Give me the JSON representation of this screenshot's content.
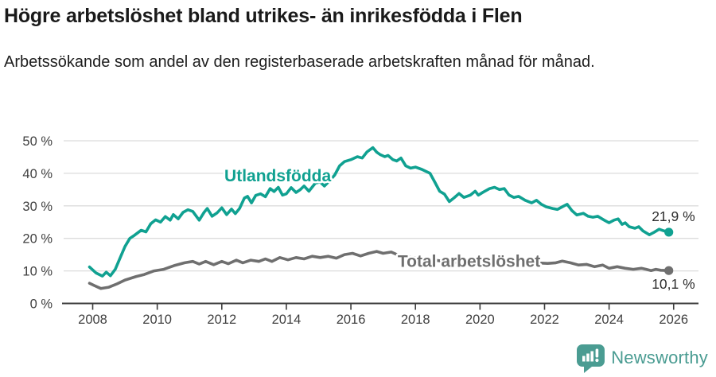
{
  "header": {
    "title": "Högre arbetslöshet bland utrikes- än inrikesfödda i Flen",
    "subtitle": "Arbetssökande som andel av den registerbaserade arbetskraften månad för månad."
  },
  "chart_data": {
    "type": "line",
    "title": "Högre arbetslöshet bland utrikes- än inrikesfödda i Flen",
    "subtitle": "Arbetssökande som andel av den registerbaserade arbetskraften månad för månad.",
    "grid": true,
    "x_axis": {
      "range": [
        2007.1,
        2026.77
      ],
      "ticks": [
        {
          "value": 2008,
          "label": "2008"
        },
        {
          "value": 2010,
          "label": "2010"
        },
        {
          "value": 2012,
          "label": "2012"
        },
        {
          "value": 2014,
          "label": "2014"
        },
        {
          "value": 2016,
          "label": "2016"
        },
        {
          "value": 2018,
          "label": "2018"
        },
        {
          "value": 2020,
          "label": "2020"
        },
        {
          "value": 2022,
          "label": "2022"
        },
        {
          "value": 2024,
          "label": "2024"
        },
        {
          "value": 2026,
          "label": "2026"
        }
      ]
    },
    "y_axis": {
      "range": [
        0,
        50
      ],
      "ticks": [
        {
          "value": 0,
          "label": "0 %"
        },
        {
          "value": 10,
          "label": "10 %"
        },
        {
          "value": 20,
          "label": "20 %"
        },
        {
          "value": 30,
          "label": "30 %"
        },
        {
          "value": 40,
          "label": "40 %"
        },
        {
          "value": 50,
          "label": "50 %"
        }
      ]
    },
    "colors": {
      "accent_teal": "#10a191",
      "line_gray": "#6f6f6f",
      "grid": "#dcdcdc",
      "axis": "#3c3c3c",
      "tick_text": "#3f3f3f",
      "value_text": "#2e2e2e"
    },
    "series": [
      {
        "name": "Total arbetslöshet",
        "slug": "total-arbetsloshet",
        "color": "#6f6f6f",
        "end_label": "10,1 %",
        "end_label_position": "below",
        "label_anchor": {
          "x": 2017.45,
          "y": 11.2
        },
        "points": [
          [
            2007.9,
            6.2
          ],
          [
            2008.05,
            5.5
          ],
          [
            2008.25,
            4.6
          ],
          [
            2008.5,
            5.0
          ],
          [
            2008.75,
            6.0
          ],
          [
            2009.0,
            7.2
          ],
          [
            2009.35,
            8.3
          ],
          [
            2009.6,
            8.9
          ],
          [
            2009.9,
            10.0
          ],
          [
            2010.2,
            10.5
          ],
          [
            2010.55,
            11.7
          ],
          [
            2010.85,
            12.5
          ],
          [
            2011.1,
            12.9
          ],
          [
            2011.3,
            12.1
          ],
          [
            2011.5,
            12.9
          ],
          [
            2011.75,
            11.9
          ],
          [
            2012.0,
            12.9
          ],
          [
            2012.2,
            12.2
          ],
          [
            2012.45,
            13.3
          ],
          [
            2012.65,
            12.5
          ],
          [
            2012.9,
            13.3
          ],
          [
            2013.15,
            12.9
          ],
          [
            2013.35,
            13.7
          ],
          [
            2013.55,
            12.9
          ],
          [
            2013.8,
            14.1
          ],
          [
            2014.05,
            13.4
          ],
          [
            2014.3,
            14.1
          ],
          [
            2014.55,
            13.7
          ],
          [
            2014.8,
            14.5
          ],
          [
            2015.05,
            14.1
          ],
          [
            2015.3,
            14.5
          ],
          [
            2015.55,
            13.9
          ],
          [
            2015.8,
            15.0
          ],
          [
            2016.05,
            15.4
          ],
          [
            2016.3,
            14.6
          ],
          [
            2016.55,
            15.4
          ],
          [
            2016.8,
            16.0
          ],
          [
            2017.0,
            15.4
          ],
          [
            2017.25,
            15.8
          ],
          [
            2017.5,
            14.7
          ],
          [
            2017.75,
            14.3
          ],
          [
            2018.0,
            14.0
          ],
          [
            2018.5,
            13.4
          ],
          [
            2019.0,
            12.8
          ],
          [
            2019.5,
            12.4
          ],
          [
            2019.8,
            12.2
          ],
          [
            2020.3,
            13.0
          ],
          [
            2020.55,
            13.3
          ],
          [
            2020.8,
            13.0
          ],
          [
            2021.0,
            12.7
          ],
          [
            2021.3,
            12.4
          ],
          [
            2021.6,
            12.2
          ],
          [
            2021.9,
            12.4
          ],
          [
            2022.1,
            12.3
          ],
          [
            2022.35,
            12.5
          ],
          [
            2022.55,
            13.0
          ],
          [
            2022.8,
            12.5
          ],
          [
            2023.05,
            11.8
          ],
          [
            2023.3,
            12.0
          ],
          [
            2023.55,
            11.3
          ],
          [
            2023.8,
            11.8
          ],
          [
            2024.0,
            10.8
          ],
          [
            2024.25,
            11.3
          ],
          [
            2024.5,
            10.8
          ],
          [
            2024.75,
            10.5
          ],
          [
            2025.0,
            10.8
          ],
          [
            2025.15,
            10.5
          ],
          [
            2025.3,
            10.1
          ],
          [
            2025.45,
            10.5
          ],
          [
            2025.6,
            10.2
          ],
          [
            2025.85,
            10.1
          ]
        ]
      },
      {
        "name": "Utlandsfödda",
        "slug": "utlandsfodda",
        "color": "#10a191",
        "end_label": "21,9 %",
        "end_label_position": "above",
        "label_anchor": {
          "x": 2012.08,
          "y": 37.5
        },
        "points": [
          [
            2007.9,
            11.2
          ],
          [
            2008.1,
            9.4
          ],
          [
            2008.3,
            8.4
          ],
          [
            2008.42,
            9.6
          ],
          [
            2008.55,
            8.5
          ],
          [
            2008.7,
            10.5
          ],
          [
            2008.85,
            14.0
          ],
          [
            2009.0,
            17.5
          ],
          [
            2009.15,
            20.0
          ],
          [
            2009.3,
            21.0
          ],
          [
            2009.5,
            22.5
          ],
          [
            2009.65,
            22.0
          ],
          [
            2009.8,
            24.5
          ],
          [
            2009.95,
            25.7
          ],
          [
            2010.1,
            25.0
          ],
          [
            2010.25,
            26.7
          ],
          [
            2010.4,
            25.6
          ],
          [
            2010.5,
            27.3
          ],
          [
            2010.65,
            26.0
          ],
          [
            2010.8,
            28.0
          ],
          [
            2010.95,
            28.8
          ],
          [
            2011.1,
            28.3
          ],
          [
            2011.3,
            25.6
          ],
          [
            2011.45,
            28.0
          ],
          [
            2011.55,
            29.2
          ],
          [
            2011.7,
            26.8
          ],
          [
            2011.85,
            27.8
          ],
          [
            2012.0,
            29.4
          ],
          [
            2012.15,
            27.3
          ],
          [
            2012.3,
            29.0
          ],
          [
            2012.42,
            27.6
          ],
          [
            2012.55,
            29.2
          ],
          [
            2012.7,
            32.4
          ],
          [
            2012.8,
            32.9
          ],
          [
            2012.92,
            30.9
          ],
          [
            2013.05,
            33.2
          ],
          [
            2013.2,
            33.7
          ],
          [
            2013.35,
            32.8
          ],
          [
            2013.5,
            35.3
          ],
          [
            2013.62,
            34.4
          ],
          [
            2013.75,
            35.7
          ],
          [
            2013.88,
            33.3
          ],
          [
            2014.0,
            33.7
          ],
          [
            2014.15,
            35.6
          ],
          [
            2014.3,
            34.1
          ],
          [
            2014.42,
            34.9
          ],
          [
            2014.55,
            36.1
          ],
          [
            2014.7,
            34.5
          ],
          [
            2014.9,
            37.0
          ],
          [
            2015.05,
            37.3
          ],
          [
            2015.18,
            36.1
          ],
          [
            2015.35,
            37.8
          ],
          [
            2015.5,
            39.5
          ],
          [
            2015.65,
            42.3
          ],
          [
            2015.8,
            43.6
          ],
          [
            2016.0,
            44.2
          ],
          [
            2016.2,
            45.1
          ],
          [
            2016.35,
            44.7
          ],
          [
            2016.5,
            46.6
          ],
          [
            2016.68,
            47.9
          ],
          [
            2016.8,
            46.5
          ],
          [
            2016.9,
            45.8
          ],
          [
            2017.05,
            45.1
          ],
          [
            2017.15,
            45.5
          ],
          [
            2017.3,
            44.2
          ],
          [
            2017.42,
            43.8
          ],
          [
            2017.55,
            44.7
          ],
          [
            2017.7,
            42.3
          ],
          [
            2017.85,
            41.6
          ],
          [
            2018.0,
            41.9
          ],
          [
            2018.2,
            41.2
          ],
          [
            2018.45,
            40.0
          ],
          [
            2018.6,
            37.3
          ],
          [
            2018.75,
            34.5
          ],
          [
            2018.9,
            33.6
          ],
          [
            2019.05,
            31.3
          ],
          [
            2019.2,
            32.5
          ],
          [
            2019.35,
            33.8
          ],
          [
            2019.5,
            32.6
          ],
          [
            2019.7,
            33.3
          ],
          [
            2019.85,
            34.5
          ],
          [
            2019.95,
            33.3
          ],
          [
            2020.1,
            34.2
          ],
          [
            2020.3,
            35.3
          ],
          [
            2020.45,
            35.7
          ],
          [
            2020.6,
            35.0
          ],
          [
            2020.75,
            35.3
          ],
          [
            2020.9,
            33.3
          ],
          [
            2021.05,
            32.6
          ],
          [
            2021.2,
            32.9
          ],
          [
            2021.4,
            31.7
          ],
          [
            2021.6,
            30.9
          ],
          [
            2021.75,
            31.7
          ],
          [
            2021.9,
            30.5
          ],
          [
            2022.05,
            29.7
          ],
          [
            2022.25,
            29.2
          ],
          [
            2022.4,
            28.9
          ],
          [
            2022.55,
            29.7
          ],
          [
            2022.7,
            30.5
          ],
          [
            2022.85,
            28.5
          ],
          [
            2023.0,
            27.2
          ],
          [
            2023.2,
            27.7
          ],
          [
            2023.35,
            26.8
          ],
          [
            2023.5,
            26.5
          ],
          [
            2023.65,
            26.8
          ],
          [
            2023.85,
            25.6
          ],
          [
            2024.0,
            24.8
          ],
          [
            2024.15,
            25.6
          ],
          [
            2024.28,
            26.0
          ],
          [
            2024.4,
            24.3
          ],
          [
            2024.5,
            24.8
          ],
          [
            2024.62,
            23.6
          ],
          [
            2024.8,
            23.1
          ],
          [
            2024.92,
            23.6
          ],
          [
            2025.05,
            22.3
          ],
          [
            2025.25,
            21.1
          ],
          [
            2025.4,
            21.9
          ],
          [
            2025.55,
            22.8
          ],
          [
            2025.7,
            22.3
          ],
          [
            2025.85,
            21.9
          ]
        ]
      }
    ],
    "legend_position": "inline-labels"
  },
  "footer": {
    "brand": "Newsworthy",
    "logo_icon": "bar-chart-speech-bubble-icon",
    "brand_color": "#4a9c92"
  }
}
